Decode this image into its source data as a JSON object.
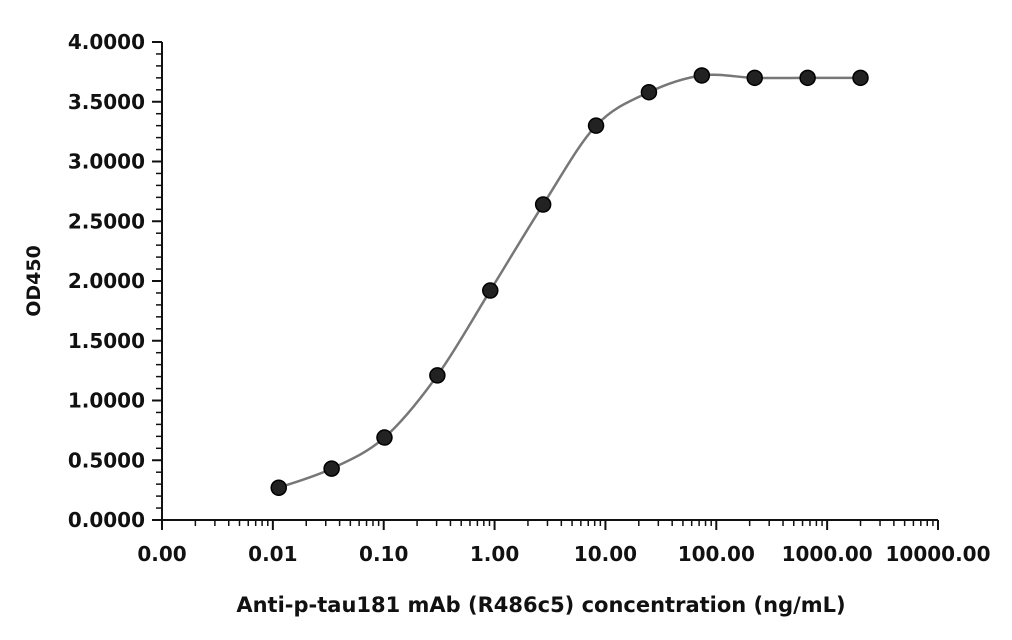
{
  "chart_data": {
    "type": "scatter",
    "title": "",
    "xlabel": "Anti-p-tau181 mAb (R486c5) concentration (ng/mL)",
    "ylabel": "OD450",
    "x_scale": "log",
    "xlim": [
      0.001,
      10000
    ],
    "ylim": [
      0,
      4
    ],
    "x_tick_values": [
      0.001,
      0.01,
      0.1,
      1,
      10,
      100,
      1000,
      10000
    ],
    "x_tick_labels": [
      "0.00",
      "0.01",
      "0.10",
      "1.00",
      "10.00",
      "100.00",
      "1000.00",
      "10000.00"
    ],
    "y_tick_values": [
      0,
      0.5,
      1,
      1.5,
      2,
      2.5,
      3,
      3.5,
      4
    ],
    "y_tick_labels": [
      "0.0000",
      "0.5000",
      "1.0000",
      "1.5000",
      "2.0000",
      "2.5000",
      "3.0000",
      "3.5000",
      "4.0000"
    ],
    "grid": false,
    "fit_curve": true,
    "colors": {
      "points": "#222222",
      "curve": "#777777",
      "axis": "#111111"
    },
    "series": [
      {
        "x": [
          0.0113,
          0.0339,
          0.1016,
          0.3048,
          0.9145,
          2.743,
          8.23,
          24.69,
          74.07,
          222.2,
          666.7,
          2000
        ],
        "y": [
          0.27,
          0.43,
          0.69,
          1.21,
          1.92,
          2.64,
          3.3,
          3.58,
          3.72,
          3.7,
          3.7,
          3.7
        ]
      }
    ]
  }
}
